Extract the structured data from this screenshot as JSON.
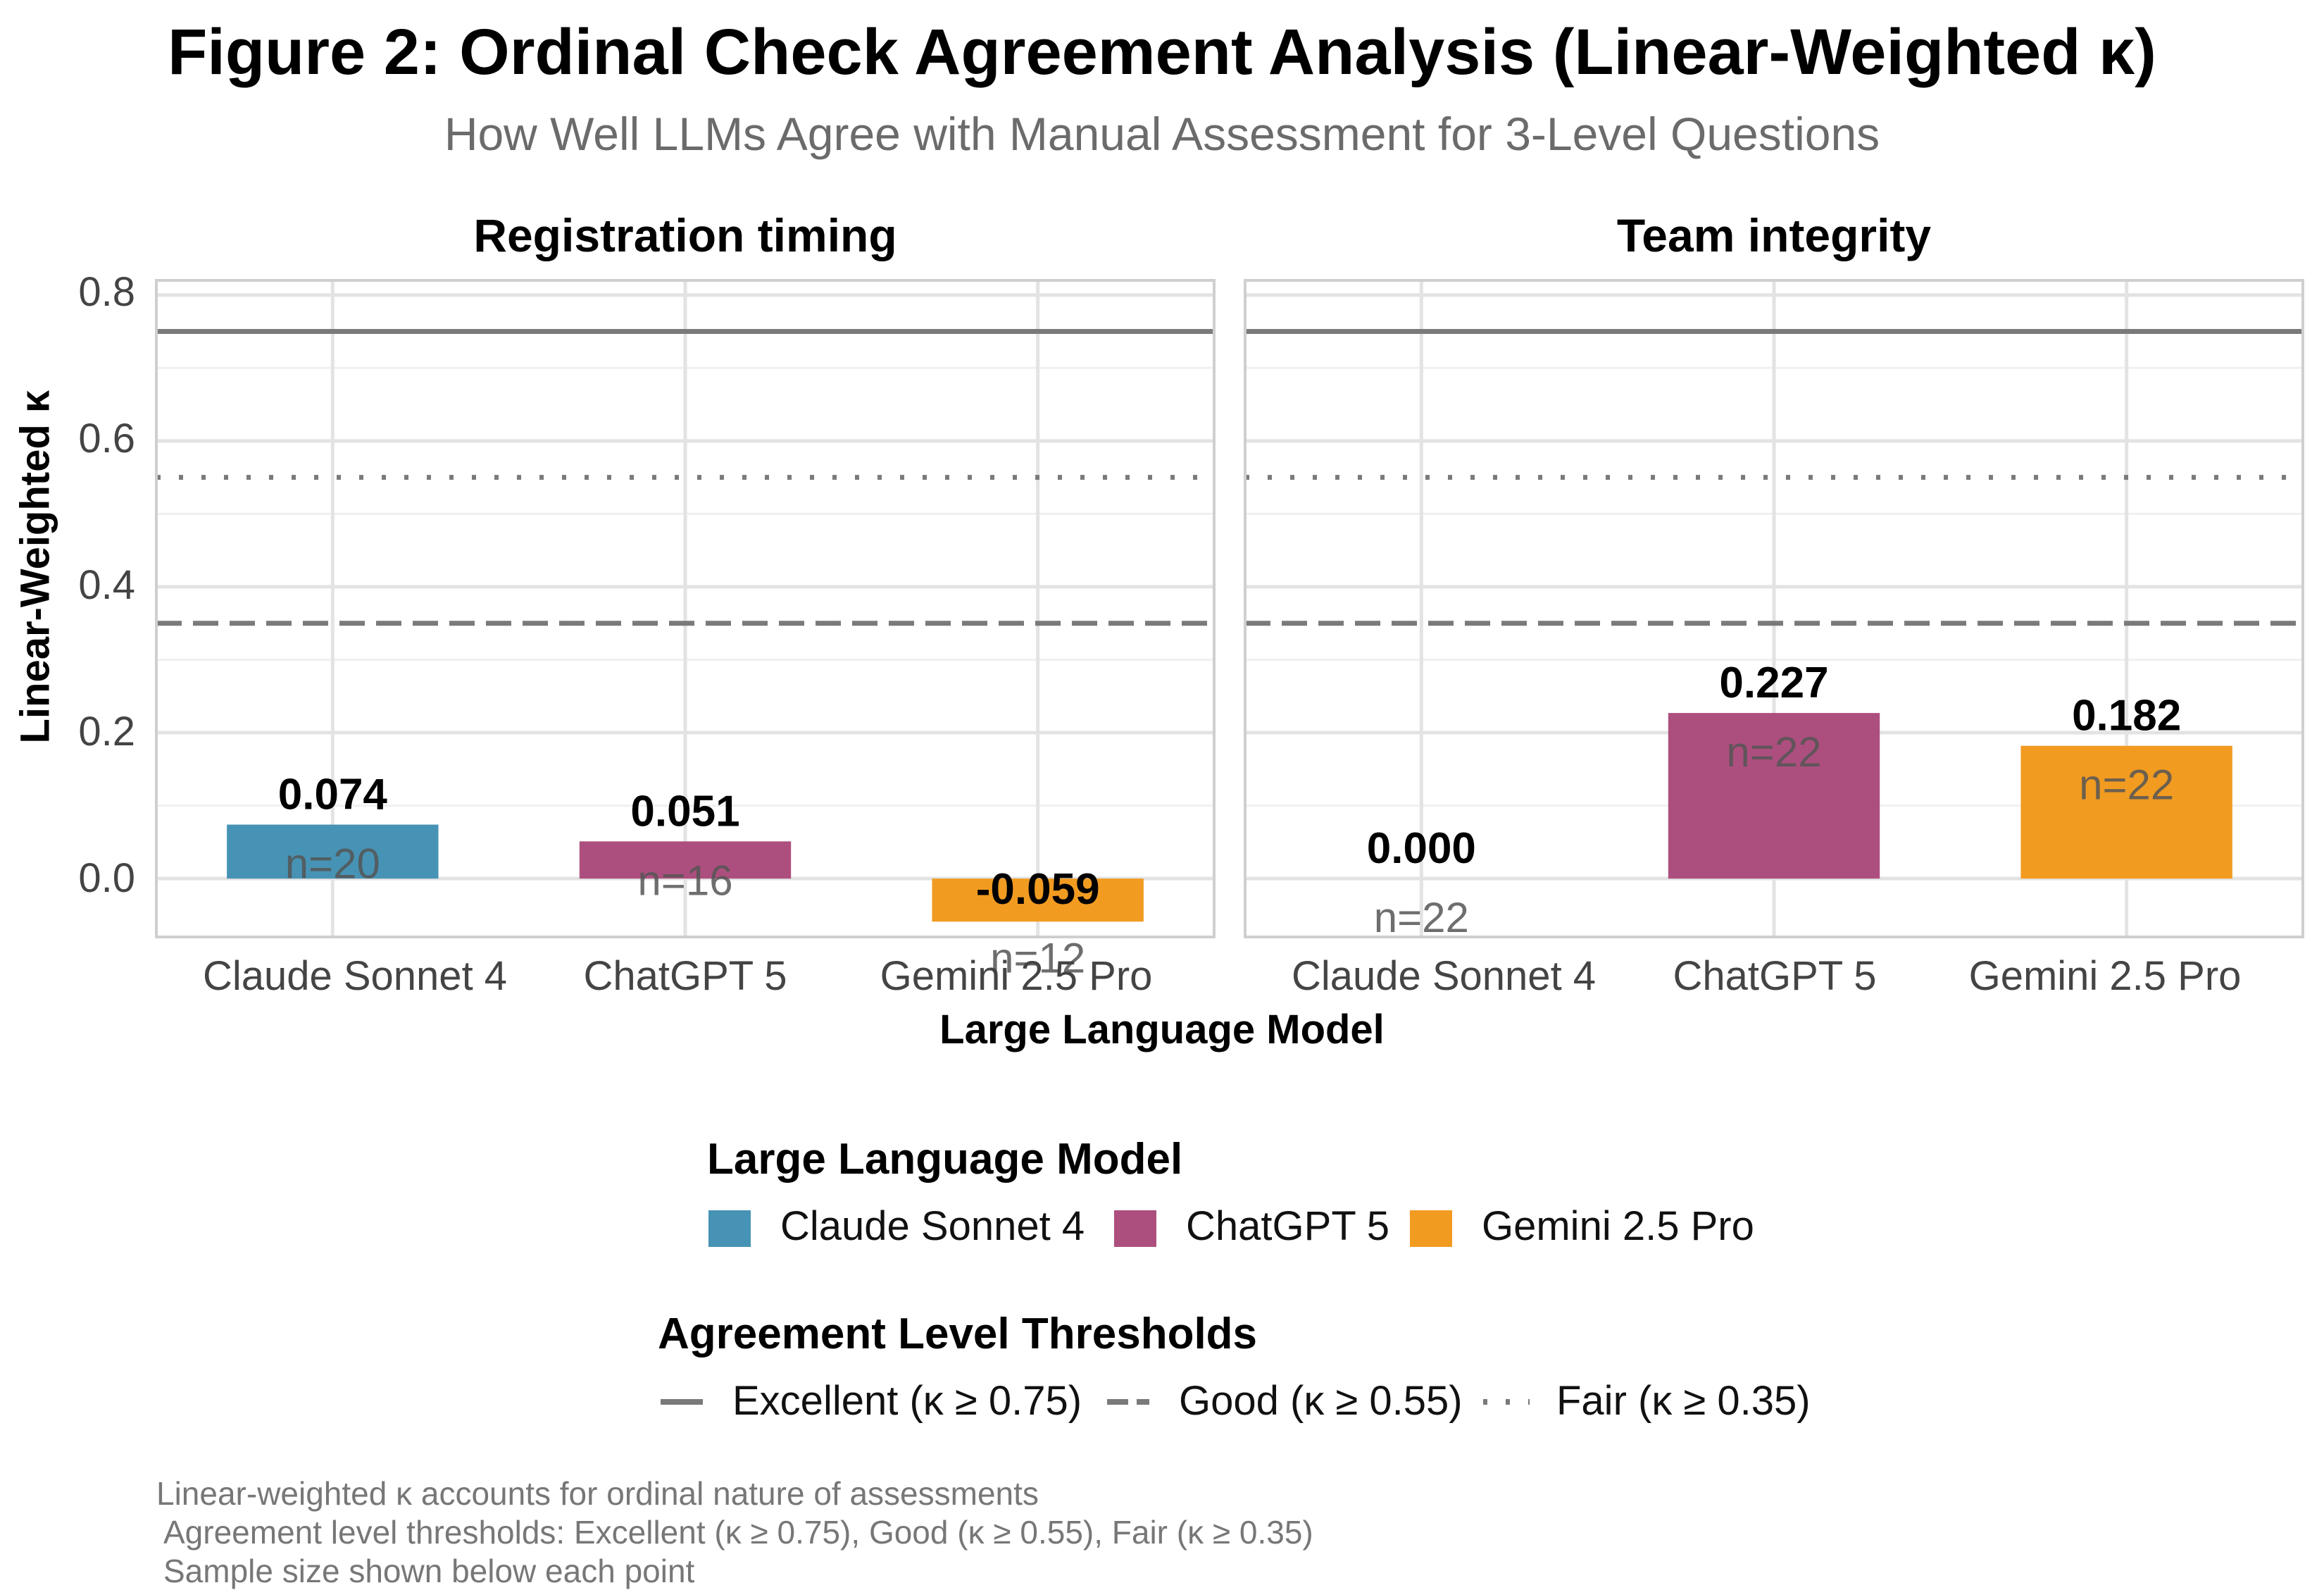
{
  "figure": {
    "title": "Figure 2: Ordinal Check Agreement Analysis (Linear-Weighted κ)",
    "subtitle": "How Well LLMs Agree with Manual Assessment for 3-Level Questions"
  },
  "chart_data": {
    "type": "bar",
    "ylabel": "Linear-Weighted κ",
    "xlabel": "Large Language Model",
    "ylim": [
      -0.08,
      0.82
    ],
    "yticks": [
      "0.0",
      "0.2",
      "0.4",
      "0.6",
      "0.8"
    ],
    "ytick_values": [
      0.0,
      0.2,
      0.4,
      0.6,
      0.8
    ],
    "grid": true,
    "categories": [
      "Claude Sonnet 4",
      "ChatGPT 5",
      "Gemini 2.5 Pro"
    ],
    "colors": [
      "#4793b5",
      "#ad4f7e",
      "#f19b21"
    ],
    "thresholds": [
      {
        "value": 0.75,
        "style": "solid"
      },
      {
        "value": 0.55,
        "style": "dotted"
      },
      {
        "value": 0.35,
        "style": "dashed"
      }
    ],
    "panels": [
      {
        "title": "Registration timing",
        "values": [
          0.074,
          0.051,
          -0.059
        ],
        "value_labels": [
          "0.074",
          "0.051",
          "-0.059"
        ],
        "n_labels": [
          "n=20",
          "n=16",
          "n=12"
        ]
      },
      {
        "title": "Team integrity",
        "values": [
          0.0,
          0.227,
          0.182
        ],
        "value_labels": [
          "0.000",
          "0.227",
          "0.182"
        ],
        "n_labels": [
          "n=22",
          "n=22",
          "n=22"
        ]
      }
    ]
  },
  "legend": {
    "models_title": "Large Language Model",
    "models": [
      "Claude Sonnet 4",
      "ChatGPT 5",
      "Gemini 2.5 Pro"
    ],
    "thresholds_title": "Agreement Level Thresholds",
    "thresholds": [
      "Excellent (κ ≥ 0.75)",
      "Good (κ ≥ 0.55)",
      "Fair (κ ≥ 0.35)"
    ],
    "threshold_line_color": "#7a7a7a"
  },
  "caption": {
    "line1": "Linear-weighted κ accounts for ordinal nature of assessments",
    "line2": "Agreement level thresholds: Excellent (κ ≥ 0.75), Good (κ ≥ 0.55), Fair (κ ≥ 0.35)",
    "line3": "Sample size shown below each point"
  }
}
